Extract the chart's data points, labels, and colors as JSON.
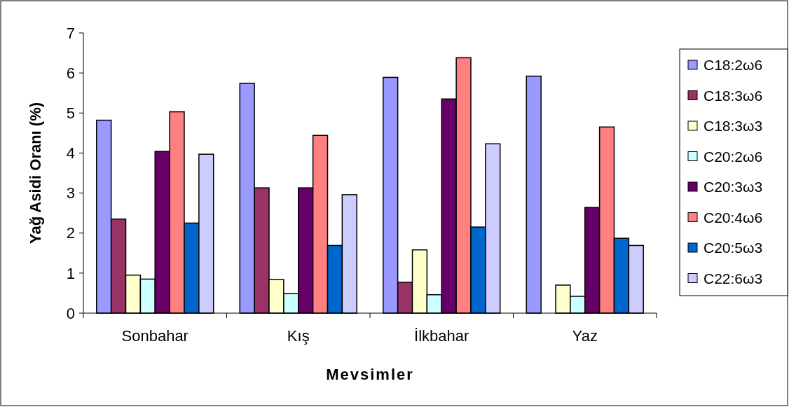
{
  "chart_data": {
    "type": "bar",
    "xlabel": "Mevsimler",
    "ylabel": "Yağ Asidi Oranı (%)",
    "categories": [
      "Sonbahar",
      "Kış",
      "İlkbahar",
      "Yaz"
    ],
    "ylim": [
      0,
      7
    ],
    "yticks": [
      0,
      1,
      2,
      3,
      4,
      5,
      6,
      7
    ],
    "grid": false,
    "legend": "right",
    "series": [
      {
        "name": "C18:2ω6",
        "color": "#9999ff",
        "values": [
          4.82,
          5.74,
          5.89,
          5.92
        ]
      },
      {
        "name": "C18:3ω6",
        "color": "#993366",
        "values": [
          2.35,
          3.13,
          0.77,
          null
        ]
      },
      {
        "name": "C18:3ω3",
        "color": "#ffffcc",
        "values": [
          0.95,
          0.84,
          1.58,
          0.7
        ]
      },
      {
        "name": "C20:2ω6",
        "color": "#ccffff",
        "values": [
          0.85,
          0.49,
          0.46,
          0.42
        ]
      },
      {
        "name": "C20:3ω3",
        "color": "#660066",
        "values": [
          4.04,
          3.13,
          5.35,
          2.64
        ]
      },
      {
        "name": "C20:4ω6",
        "color": "#ff8080",
        "values": [
          5.03,
          4.44,
          6.38,
          4.65
        ]
      },
      {
        "name": "C20:5ω3",
        "color": "#0066cc",
        "values": [
          2.25,
          1.69,
          2.15,
          1.87
        ]
      },
      {
        "name": "C22:6ω3",
        "color": "#ccccff",
        "values": [
          3.97,
          2.96,
          4.23,
          1.69
        ]
      }
    ]
  }
}
